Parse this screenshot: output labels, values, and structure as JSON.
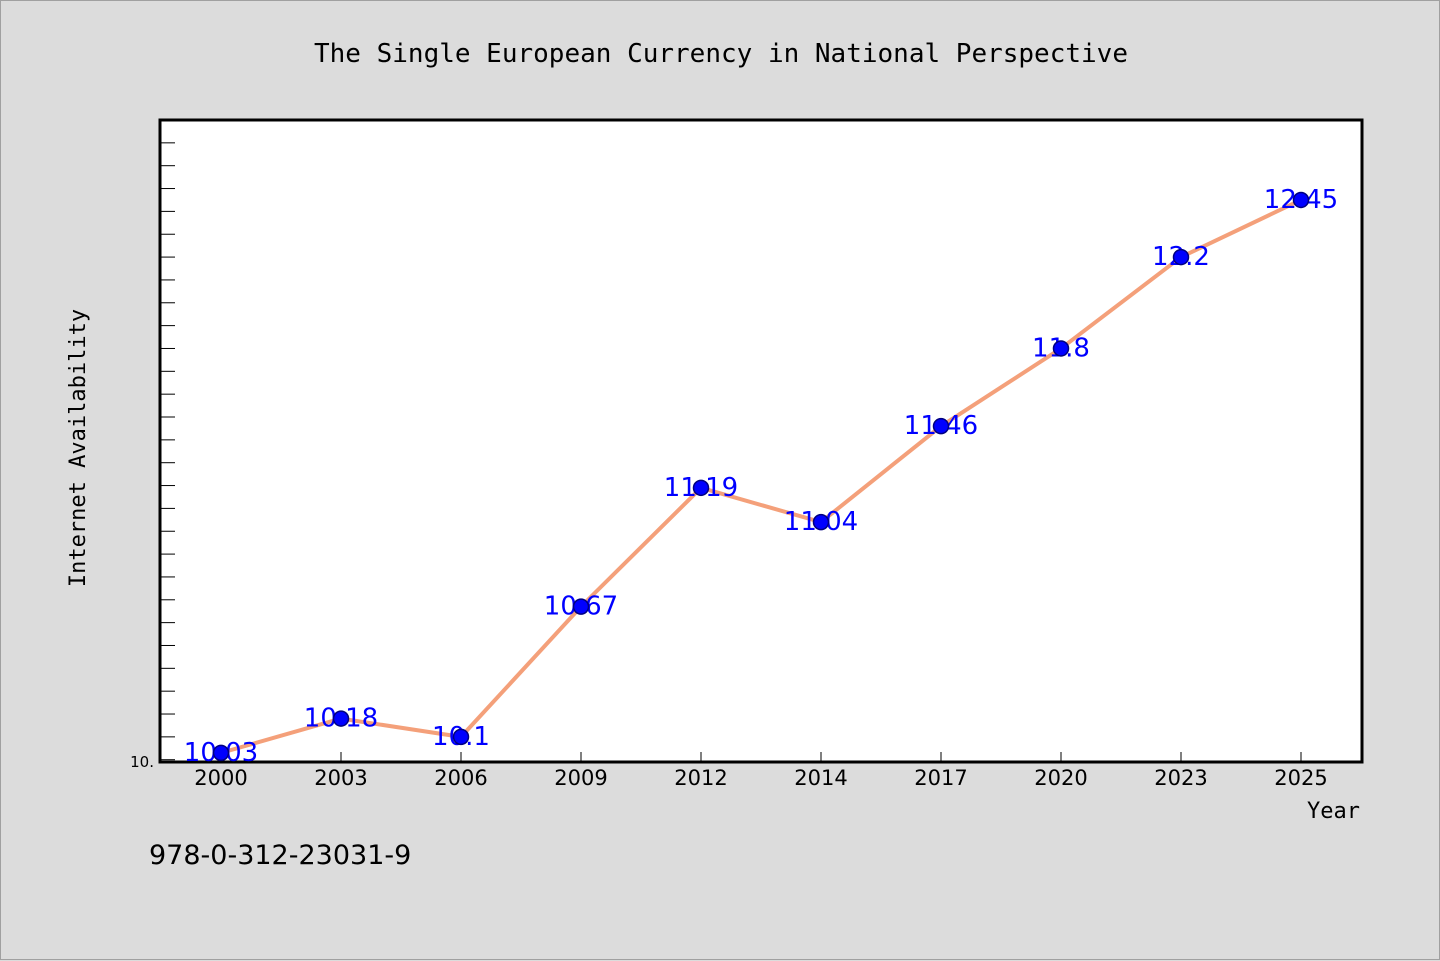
{
  "chart_data": {
    "type": "line",
    "title": "The Single European Currency in National Perspective",
    "xlabel": "Year",
    "ylabel": "Internet Availability",
    "categories": [
      "2000",
      "2003",
      "2006",
      "2009",
      "2012",
      "2014",
      "2017",
      "2020",
      "2023",
      "2025"
    ],
    "series": [
      {
        "values": [
          10.03,
          10.18,
          10.1,
          10.67,
          11.19,
          11.04,
          11.46,
          11.8,
          12.2,
          12.45
        ]
      }
    ],
    "data_labels": [
      "10.03",
      "10.18",
      "10.1",
      "10.67",
      "11.19",
      "11.04",
      "11.46",
      "11.8",
      "12.2",
      "12.45"
    ],
    "ylim": [
      9.99,
      12.8
    ],
    "y_tick_label": "10.",
    "grid": false,
    "legend": "none",
    "colors": {
      "line": "#f4a07a",
      "marker": "#0000ff",
      "marker_edge": "#000080",
      "label": "#0000ff",
      "plot_bg": "#ffffff",
      "figure_bg": "#dcdcdc"
    }
  },
  "annotation": "978-0-312-23031-9"
}
